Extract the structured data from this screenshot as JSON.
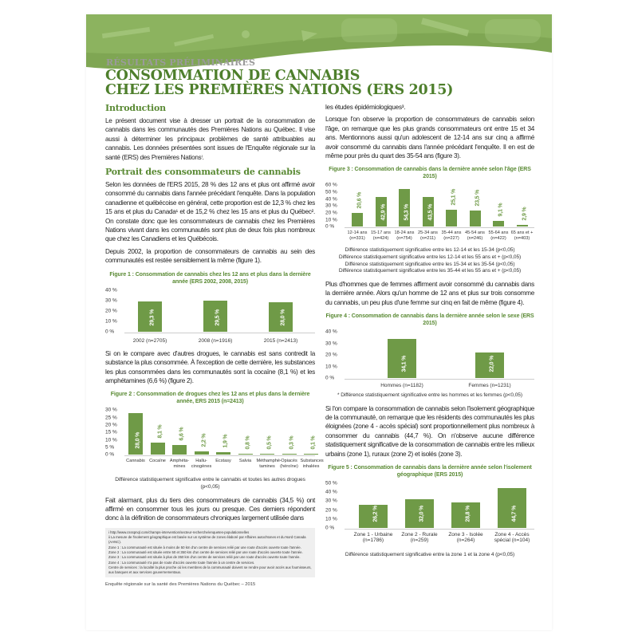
{
  "header": {
    "kicker": "RÉSULTATS PRÉLIMINAIRES",
    "title_line1": "CONSOMMATION DE CANNABIS",
    "title_line2": "CHEZ LES PREMIÈRES NATIONS (ERS 2015)"
  },
  "left": {
    "intro_heading": "Introduction",
    "intro_text": "Le présent document vise à dresser un portrait de la consommation de cannabis dans les communautés des Premières Nations au Québec. Il vise aussi à déterminer les principaux problèmes de santé attribuables au cannabis. Les données présentées sont issues de l'Enquête régionale sur la santé (ERS) des Premières Nationsⁱ.",
    "portrait_heading": "Portrait des consommateurs de cannabis",
    "portrait_text1": "Selon les données de l'ERS 2015, 28 % des 12 ans et plus ont affirmé avoir consommé du cannabis dans l'année précédant l'enquête. Dans la population canadienne et québécoise en général, cette proportion est de 12,3 % chez les 15 ans et plus du Canada¹ et de 15,2 % chez les 15 ans et plus du Québec². On constate donc que les consommateurs de cannabis chez les Premières Nations vivant dans les communautés sont plus de deux fois plus nombreux que chez les Canadiens et les Québécois.",
    "portrait_text2": "Depuis 2002, la proportion de consommateurs de cannabis au sein des communautés est restée sensiblement la même (figure 1).",
    "compare_text": "Si on le compare avec d'autres drogues, le cannabis est sans contredit la substance la plus consommée. À l'exception de cette dernière, les substances les plus consommées dans les communautés sont la cocaïne (8,1 %) et les amphétamines (6,6 %) (figure 2).",
    "alarm_text": "Fait alarmant, plus du tiers des consommateurs de cannabis (34,5 %) ont affirmé en consommer tous les jours ou presque. Ces derniers répondent donc à la définition de consommateurs chroniques largement utilisée dans"
  },
  "right": {
    "cont_text": "les études épidémiologiques³.",
    "age_text": "Lorsque l'on observe la proportion de consommateurs de cannabis selon l'âge, on remarque que les plus grands consommateurs ont entre 15 et 34 ans. Mentionnons aussi qu'un adolescent de 12-14 ans sur cinq a affirmé avoir consommé du cannabis dans l'année précédant l'enquête. Il en est de même pour près du quart des 35-54 ans (figure 3).",
    "sex_text": "Plus d'hommes que de femmes affirment avoir consommé du cannabis dans la dernière année. Alors qu'un homme de 12 ans et plus sur trois consomme du cannabis, un peu plus d'une femme sur cinq en fait de même (figure 4).",
    "geo_text": "Si l'on compare la consommation de cannabis selon l'isolement géographique de la communauté, on remarque que les résidents des communautés les plus éloignées (zone 4 - accès spécial) sont proportionnellement plus nombreux à consommer du cannabis (44,7 %). On n'observe aucune différence statistiquement significative de la consommation de cannabis entre les milieux urbains (zone 1), ruraux (zone 2) et isolés (zone 3)."
  },
  "footnotes": [
    "i http://www.cssspnql.com/champs-intervention/secteur-recherche/enquetes-populationnelles",
    "ii La mesure de l'isolement géographique est basée sur un système de zones élaboré par Affaires autochtones et du Nord Canada (AANC).",
    "Zone 1 : La communauté est située à moins de 50 km d'un centre de services relié par une route d'accès ouverte toute l'année.",
    "Zone 2 : La communauté est située entre 50 et 350 km d'un centre de services relié par une route d'accès ouverte toute l'année.",
    "Zone 3 : La communauté est située à plus de 350 km d'un centre de services relié par une route d'accès ouverte toute l'année.",
    "Zone 4 : La communauté n'a pas de route d'accès ouverte toute l'année à un centre de services.",
    "Centre de services : la localité la plus proche où les membres de la communauté doivent se rendre pour avoir accès aux fournisseurs, aux banques et aux services gouvernementaux."
  ],
  "footer": "Enquête régionale sur la santé des Premières Nations du Québec – 2015",
  "colors": {
    "accent": "#5a8a34",
    "bar": "#6f9a47",
    "title": "#4e7f2c"
  },
  "chart_data": [
    {
      "type": "bar",
      "title": "Figure 1 : Consommation de cannabis chez les 12 ans et plus dans la dernière année (ERS 2002, 2008, 2015)",
      "categories": [
        "2002 (n=2705)",
        "2008 (n=1916)",
        "2015 (n=2413)"
      ],
      "values": [
        29.3,
        29.5,
        28.0
      ],
      "labels": [
        "29,3 %",
        "29,5 %",
        "28,0 %"
      ],
      "ylim": [
        0,
        40
      ],
      "yticks": [
        "0 %",
        "10 %",
        "20 %",
        "30 %",
        "40 %"
      ],
      "notes": []
    },
    {
      "type": "bar",
      "title": "Figure 2 : Consommation de drogues chez les 12 ans et plus dans la dernière année, ERS 2015 (n=2413)",
      "categories": [
        "Cannabis",
        "Cocaïne",
        "Amphéta-mines",
        "Hallu-cinogènes",
        "Ecstasy",
        "Salvia",
        "Méthamphé-tamines",
        "Opiacés (héroïne)",
        "Substances inhalées"
      ],
      "values": [
        28.0,
        8.1,
        6.6,
        2.2,
        1.9,
        0.8,
        0.5,
        0.3,
        0.1
      ],
      "labels": [
        "28,0 %",
        "8,1 %",
        "6,6 %",
        "2,2 %",
        "1,9 %",
        "0,8 %",
        "0,5 %",
        "0,3 %",
        "0,1 %"
      ],
      "ylim": [
        0,
        30
      ],
      "yticks": [
        "0 %",
        "5 %",
        "10 %",
        "15 %",
        "20 %",
        "25 %",
        "30 %"
      ],
      "notes": [
        "Différence statistiquement significative entre le cannabis et toutes les autres drogues (p<0,05)"
      ]
    },
    {
      "type": "bar",
      "title": "Figure 3 : Consommation de cannabis dans la dernière année selon l'âge (ERS 2015)",
      "categories": [
        "12-14 ans (n=331)",
        "15-17 ans (n=424)",
        "18-24 ans (n=754)",
        "25-34 ans (n=211)",
        "35-44 ans (n=227)",
        "45-54 ans (n=246)",
        "55-64 ans (n=422)",
        "65 ans et + (n=403)"
      ],
      "values": [
        20.6,
        42.9,
        54.3,
        43.5,
        25.1,
        23.5,
        9.1,
        2.9
      ],
      "labels": [
        "20,6 %",
        "42,9 %",
        "54,3 %",
        "43,5 %",
        "25,1 %",
        "23,5 %",
        "9,1 %",
        "2,9 %"
      ],
      "ylim": [
        0,
        60
      ],
      "yticks": [
        "0 %",
        "10 %",
        "20 %",
        "30 %",
        "40 %",
        "50 %",
        "60 %"
      ],
      "notes": [
        "Différence statistiquement significative entre les 12-14 et les 15-34 (p<0,05)",
        "Différence statistiquement significative entre les 12-14 et les 55 ans et + (p<0,05)",
        "Différence statistiquement significative entre les 15-34 et les 35-54 (p<0,05)",
        "Différence statistiquement significative entre les 35-44 et les 55 ans et + (p<0,05)"
      ]
    },
    {
      "type": "bar",
      "title": "Figure 4 : Consommation de cannabis dans la dernière année selon le sexe (ERS 2015)",
      "categories": [
        "Hommes (n=1182)",
        "Femmes (n=1231)"
      ],
      "values": [
        34.1,
        22.0
      ],
      "labels": [
        "34,1 %",
        "22,0 %"
      ],
      "ylim": [
        0,
        40
      ],
      "yticks": [
        "0 %",
        "10 %",
        "20 %",
        "30 %",
        "40 %"
      ],
      "notes": [
        "* Différence statistiquement significative entre les hommes et les femmes (p<0,05)"
      ]
    },
    {
      "type": "bar",
      "title": "Figure 5 : Consommation de cannabis dans la dernière année selon l'isolement géographique (ERS 2015)",
      "categories": [
        "Zone 1 - Urbaine (n=1786)",
        "Zone 2 - Rurale (n=259)",
        "Zone 3 - Isolée (n=264)",
        "Zone 4 - Accès spécial (n=104)"
      ],
      "values": [
        26.2,
        32.0,
        28.8,
        44.7
      ],
      "labels": [
        "26,2 %",
        "32,0 %",
        "28,8 %",
        "44,7 %"
      ],
      "ylim": [
        0,
        50
      ],
      "yticks": [
        "0 %",
        "10 %",
        "20 %",
        "30 %",
        "40 %",
        "50 %"
      ],
      "notes": [
        "Différence statistiquement significative entre la zone 1 et la zone 4 (p<0,05)"
      ]
    }
  ]
}
